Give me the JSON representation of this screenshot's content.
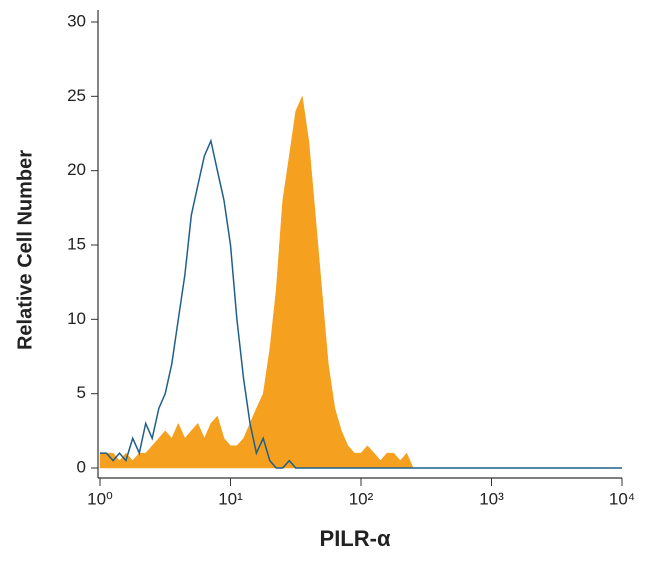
{
  "chart_data": {
    "type": "line",
    "xlabel": "PILR-α",
    "ylabel": "Relative Cell Number",
    "xscale": "log",
    "xlim": [
      1,
      10000
    ],
    "xticks": [
      {
        "value": 1,
        "label": "10⁰"
      },
      {
        "value": 10,
        "label": "10¹"
      },
      {
        "value": 100,
        "label": "10²"
      },
      {
        "value": 1000,
        "label": "10³"
      },
      {
        "value": 10000,
        "label": "10⁴"
      }
    ],
    "ylim": [
      0,
      30
    ],
    "yticks": [
      0,
      5,
      10,
      15,
      20,
      25,
      30
    ],
    "x": [
      1,
      1.12,
      1.26,
      1.41,
      1.58,
      1.78,
      2,
      2.24,
      2.51,
      2.82,
      3.16,
      3.55,
      3.98,
      4.47,
      5.01,
      5.62,
      6.31,
      7.08,
      7.94,
      8.91,
      10,
      11.2,
      12.6,
      14.1,
      15.8,
      17.8,
      20,
      22.4,
      25.1,
      28.2,
      31.6,
      35.5,
      39.8,
      44.7,
      50.1,
      56.2,
      63.1,
      70.8,
      79.4,
      89.1,
      100,
      112,
      126,
      141,
      158,
      178,
      200,
      224,
      251,
      1000,
      10000
    ],
    "series": [
      {
        "color": "#f5a01e",
        "fill": true,
        "values": [
          1,
          1,
          1,
          0.5,
          1,
          0.5,
          1,
          1,
          1.5,
          2,
          2.5,
          2,
          3,
          2,
          2.5,
          3,
          2,
          3,
          3.5,
          2,
          1.5,
          1.5,
          2,
          3,
          4,
          5,
          8,
          12,
          18,
          21,
          24,
          25,
          22,
          17,
          12,
          7,
          4,
          2.5,
          1.5,
          1,
          1,
          1.5,
          1,
          0.5,
          1,
          1,
          0.5,
          1,
          0,
          0,
          0
        ]
      },
      {
        "color": "#1f5f8b",
        "fill": false,
        "values": [
          1,
          1,
          0.5,
          1,
          0.5,
          2,
          1,
          3,
          2,
          4,
          5,
          7,
          10,
          13,
          17,
          19,
          21,
          22,
          20,
          18,
          15,
          10,
          6,
          3,
          1,
          2,
          0.5,
          0,
          0,
          0.5,
          0,
          0,
          0,
          0,
          0,
          0,
          0,
          0,
          0,
          0,
          0,
          0,
          0,
          0,
          0,
          0,
          0,
          0,
          0,
          0,
          0
        ]
      }
    ]
  }
}
